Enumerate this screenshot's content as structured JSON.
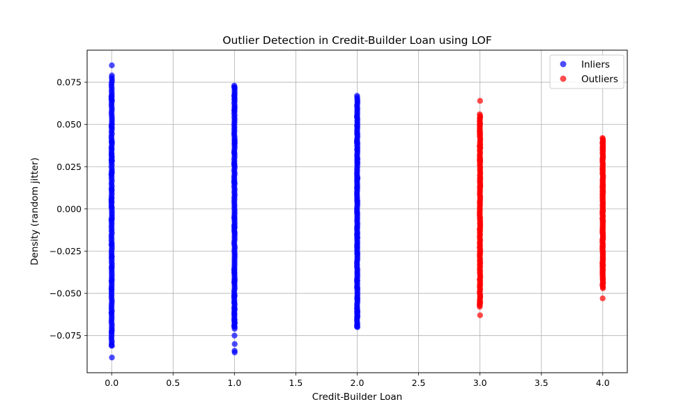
{
  "chart_data": {
    "type": "scatter",
    "title": "Outlier Detection in Credit-Builder Loan using LOF",
    "xlabel": "Credit-Builder Loan",
    "ylabel": "Density (random jitter)",
    "xlim": [
      -0.2,
      4.2
    ],
    "ylim": [
      -0.097,
      0.094
    ],
    "xticks": [
      0.0,
      0.5,
      1.0,
      1.5,
      2.0,
      2.5,
      3.0,
      3.5,
      4.0
    ],
    "xtick_labels": [
      "0.0",
      "0.5",
      "1.0",
      "1.5",
      "2.0",
      "2.5",
      "3.0",
      "3.5",
      "4.0"
    ],
    "yticks": [
      -0.075,
      -0.05,
      -0.025,
      0.0,
      0.025,
      0.05,
      0.075
    ],
    "ytick_labels": [
      "−0.075",
      "−0.050",
      "−0.025",
      "0.000",
      "0.025",
      "0.050",
      "0.075"
    ],
    "grid": true,
    "legend_position": "top-right",
    "series": [
      {
        "name": "Inliers",
        "color": "#0000ff",
        "alpha": 0.7,
        "groups": [
          {
            "x": 0.0,
            "y_min": -0.081,
            "y_max": 0.079,
            "extra_y": [
              0.085,
              -0.088
            ]
          },
          {
            "x": 1.0,
            "y_min": -0.071,
            "y_max": 0.073,
            "extra_y": [
              -0.075,
              -0.08,
              -0.084,
              -0.085
            ]
          },
          {
            "x": 2.0,
            "y_min": -0.07,
            "y_max": 0.067,
            "extra_y": [
              -0.064
            ]
          }
        ]
      },
      {
        "name": "Outliers",
        "color": "#ff0000",
        "alpha": 0.7,
        "groups": [
          {
            "x": 3.0,
            "y_min": -0.058,
            "y_max": 0.056,
            "extra_y": [
              0.064,
              -0.063
            ]
          },
          {
            "x": 4.0,
            "y_min": -0.047,
            "y_max": 0.042,
            "extra_y": [
              -0.053,
              0.036,
              0.03
            ]
          }
        ]
      }
    ]
  }
}
